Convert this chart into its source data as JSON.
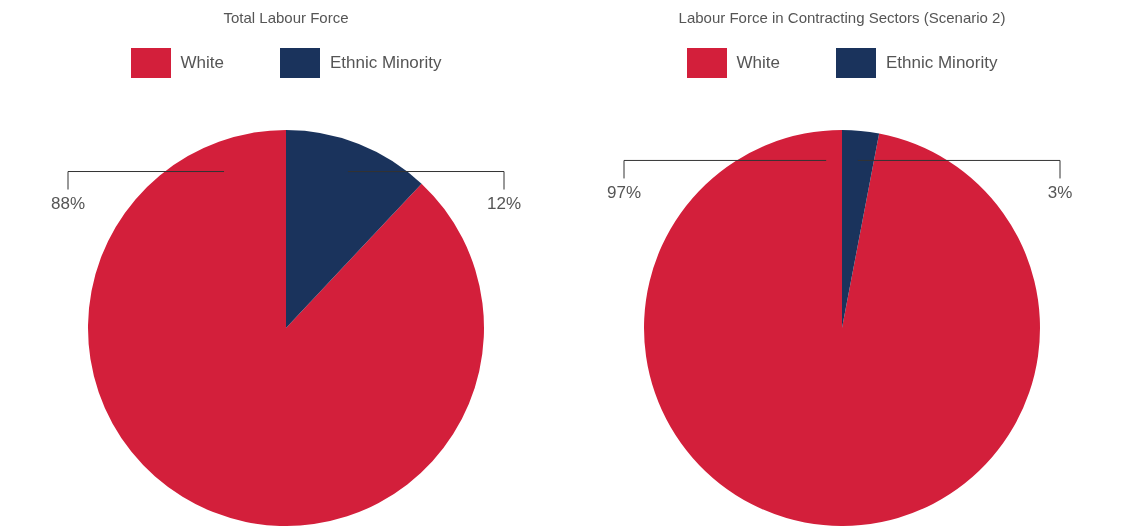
{
  "chart_data": [
    {
      "type": "pie",
      "title": "Total Labour Force",
      "categories": [
        "White",
        "Ethnic Minority"
      ],
      "values": [
        88,
        12
      ],
      "colors": [
        "#d31f3b",
        "#1a335c"
      ],
      "value_labels": [
        "88%",
        "12%"
      ],
      "legend": "top"
    },
    {
      "type": "pie",
      "title": "Labour Force in Contracting Sectors (Scenario 2)",
      "categories": [
        "White",
        "Ethnic Minority"
      ],
      "values": [
        97,
        3
      ],
      "colors": [
        "#d31f3b",
        "#1a335c"
      ],
      "value_labels": [
        "97%",
        "3%"
      ],
      "legend": "top"
    }
  ]
}
